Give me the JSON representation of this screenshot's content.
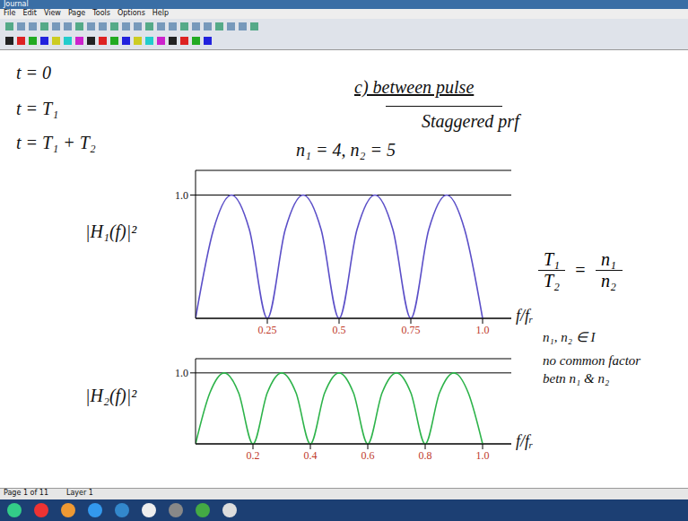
{
  "window": {
    "title": "Journal",
    "menu": [
      "File",
      "Edit",
      "View",
      "Page",
      "Tools",
      "Options",
      "Help"
    ],
    "status": [
      "Page 1 of 11",
      "Layer 1"
    ]
  },
  "page": {
    "times": [
      "t = 0",
      "t = T₁",
      "t = T₁ + T₂"
    ],
    "heading": "c) between pulse",
    "subheading": "Staggered prf",
    "ratio": {
      "left": [
        "T₁",
        "T₂"
      ],
      "right": [
        "n₁",
        "n₂"
      ]
    },
    "notes": [
      "n₁, n₂ ∈ I",
      "no common factor",
      "betn n₁ & n₂"
    ]
  },
  "chart_data": [
    {
      "type": "line",
      "title": "n₁ = 4, n₂ = 5",
      "y_label": "|H₁(f)|²",
      "x_label": "f/fᵣ",
      "x": [
        0,
        0.0625,
        0.125,
        0.1875,
        0.25,
        0.3125,
        0.375,
        0.4375,
        0.5,
        0.5625,
        0.625,
        0.6875,
        0.75,
        0.8125,
        0.875,
        0.9375,
        1.0
      ],
      "values": [
        0,
        0.72,
        1,
        0.72,
        0,
        0.72,
        1,
        0.72,
        0,
        0.72,
        1,
        0.72,
        0,
        0.72,
        1,
        0.72,
        0
      ],
      "color": "#5b4fc8",
      "xlim": [
        0,
        1.1
      ],
      "xticks": [
        0.25,
        0.5,
        0.75,
        {
          "value": 1,
          "label": "1.0"
        }
      ],
      "ylim": [
        0,
        1.2
      ],
      "yticks": [
        {
          "value": 1,
          "label": "1.0"
        }
      ],
      "grid": true
    },
    {
      "type": "line",
      "y_label": "|H₂(f)|²",
      "x_label": "f/fᵣ",
      "x": [
        0,
        0.05,
        0.1,
        0.15,
        0.2,
        0.25,
        0.3,
        0.35,
        0.4,
        0.45,
        0.5,
        0.55,
        0.6,
        0.65,
        0.7,
        0.75,
        0.8,
        0.85,
        0.9,
        0.95,
        1.0
      ],
      "values": [
        0,
        0.72,
        1,
        0.72,
        0,
        0.72,
        1,
        0.72,
        0,
        0.72,
        1,
        0.72,
        0,
        0.72,
        1,
        0.72,
        0,
        0.72,
        1,
        0.72,
        0
      ],
      "color": "#2db34a",
      "xlim": [
        0,
        1.1
      ],
      "xticks": [
        0.2,
        0.4,
        0.6,
        0.8,
        {
          "value": 1,
          "label": "1.0"
        }
      ],
      "ylim": [
        0,
        1.2
      ],
      "yticks": [
        {
          "value": 1,
          "label": "1.0"
        }
      ],
      "grid": true
    }
  ]
}
